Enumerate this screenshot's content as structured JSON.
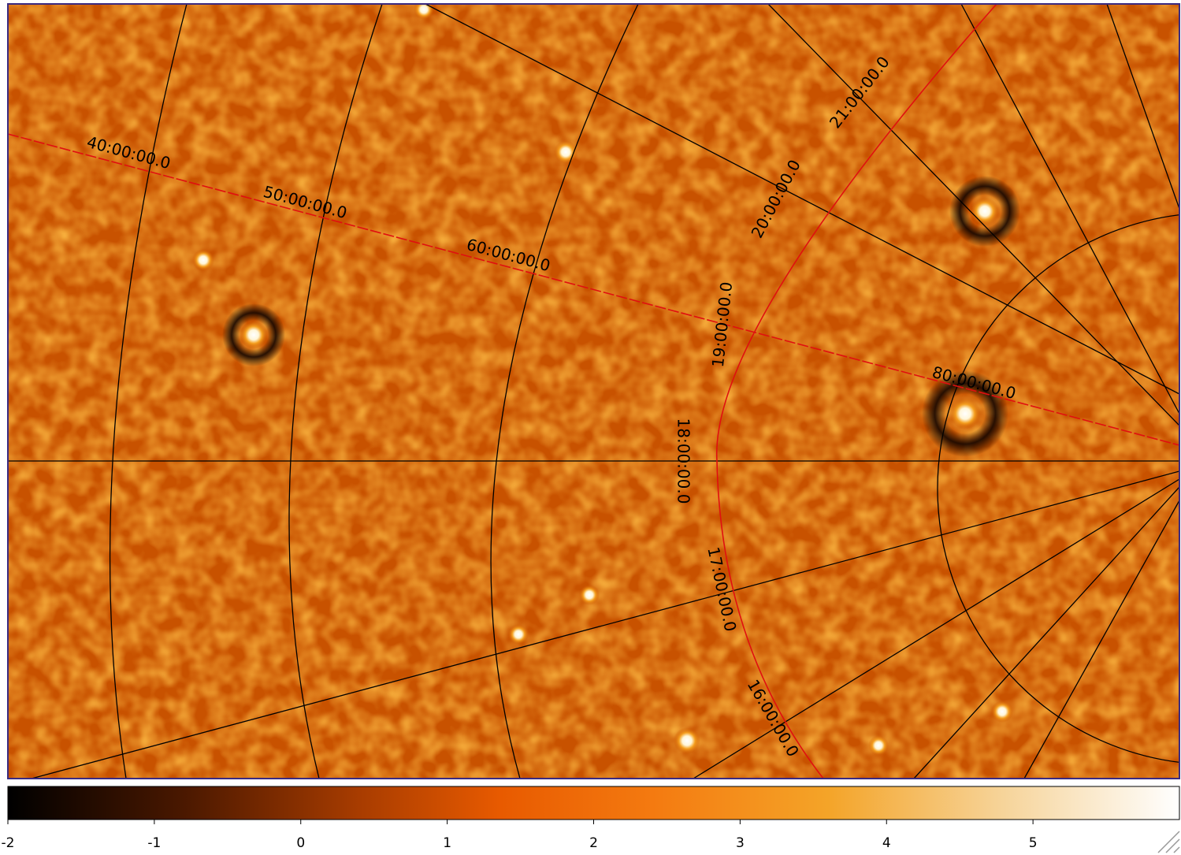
{
  "coordinate_labels": [
    "40:00:00.0",
    "50:00:00.0",
    "60:00:00.0",
    "80:00:00.0",
    "21:00:00.0",
    "20:00:00.0",
    "19:00:00.0",
    "18:00:00.0",
    "17:00:00.0",
    "16:00:00.0"
  ],
  "colorbar": {
    "range": [
      -2,
      6
    ],
    "ticks": [
      -2,
      -1,
      0,
      1,
      2,
      3,
      4,
      5
    ]
  }
}
